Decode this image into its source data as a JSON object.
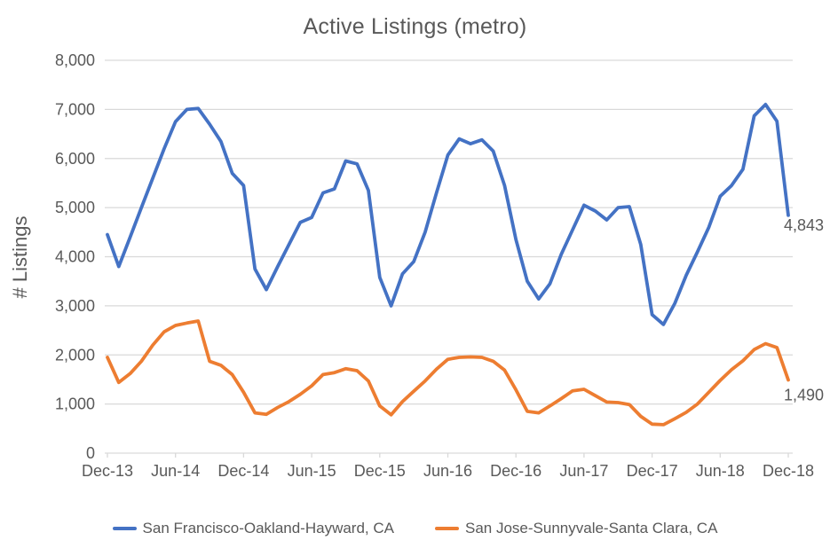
{
  "chart_data": {
    "type": "line",
    "title": "Active Listings (metro)",
    "ylabel": "# Listings",
    "xlabel": "",
    "ylim": [
      0,
      8000
    ],
    "ytick_interval": 1000,
    "ytick_labels": [
      "0",
      "1,000",
      "2,000",
      "3,000",
      "4,000",
      "5,000",
      "6,000",
      "7,000",
      "8,000"
    ],
    "xtick_labels": [
      "Dec-13",
      "Jun-14",
      "Dec-14",
      "Jun-15",
      "Dec-15",
      "Jun-16",
      "Dec-16",
      "Jun-17",
      "Dec-17",
      "Jun-18",
      "Dec-18"
    ],
    "months_per_xtick": 6,
    "x_start": "Dec-13",
    "x_end": "Dec-18",
    "grid": "horizontal",
    "legend_position": "bottom",
    "colors": {
      "grid": "#d9d9d9",
      "axis": "#d9d9d9",
      "text": "#595959",
      "background": "#ffffff"
    },
    "series": [
      {
        "name": "San Francisco-Oakland-Hayward, CA",
        "color": "#4472c4",
        "end_label": "4,843",
        "values": [
          4450,
          3800,
          4400,
          5000,
          5600,
          6200,
          6750,
          7000,
          7020,
          6700,
          6350,
          5700,
          5450,
          3750,
          3330,
          3800,
          4250,
          4700,
          4800,
          5300,
          5380,
          5950,
          5890,
          5350,
          3580,
          3000,
          3650,
          3900,
          4500,
          5300,
          6070,
          6400,
          6300,
          6380,
          6150,
          5450,
          4350,
          3500,
          3140,
          3450,
          4050,
          4550,
          5050,
          4930,
          4750,
          5000,
          5020,
          4250,
          2820,
          2620,
          3050,
          3620,
          4100,
          4600,
          5230,
          5450,
          5780,
          6870,
          7100,
          6760,
          4843
        ]
      },
      {
        "name": "San Jose-Sunnyvale-Santa Clara, CA",
        "color": "#ed7d31",
        "end_label": "1,490",
        "values": [
          1950,
          1440,
          1620,
          1870,
          2200,
          2470,
          2600,
          2650,
          2690,
          1870,
          1790,
          1600,
          1240,
          820,
          790,
          930,
          1050,
          1200,
          1370,
          1600,
          1640,
          1720,
          1680,
          1470,
          960,
          780,
          1050,
          1260,
          1470,
          1710,
          1910,
          1950,
          1960,
          1950,
          1870,
          1690,
          1290,
          850,
          820,
          960,
          1110,
          1270,
          1300,
          1170,
          1040,
          1030,
          990,
          750,
          590,
          580,
          700,
          830,
          1000,
          1240,
          1480,
          1700,
          1880,
          2110,
          2230,
          2150,
          1490
        ]
      }
    ]
  }
}
